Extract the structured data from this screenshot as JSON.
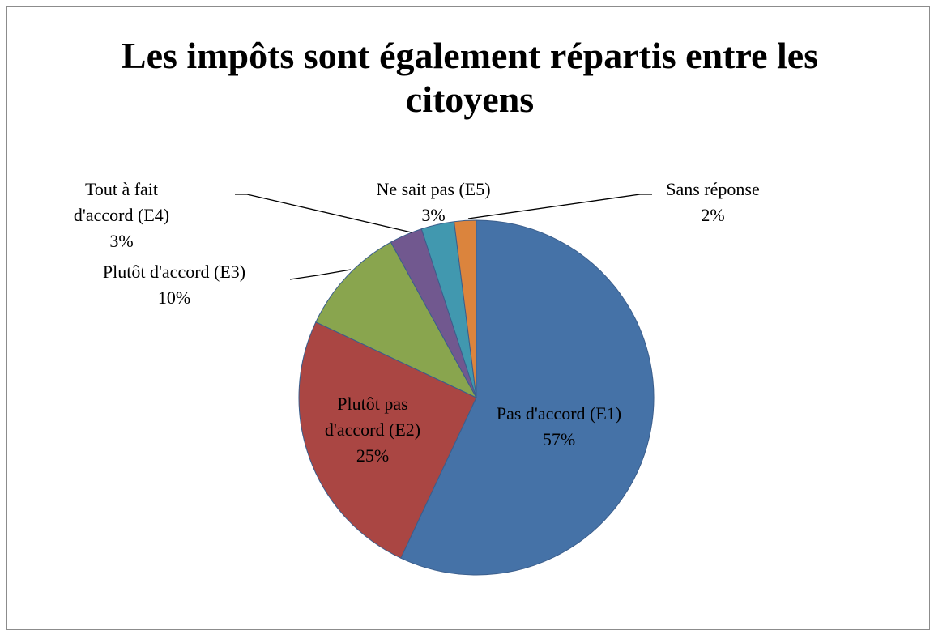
{
  "chart_data": {
    "type": "pie",
    "title": "Les impôts sont également répartis entre les citoyens",
    "categories": [
      "Pas d'accord (E1)",
      "Plutôt pas d'accord (E2)",
      "Plutôt d'accord (E3)",
      "Tout à fait d'accord (E4)",
      "Ne sait pas (E5)",
      "Sans réponse"
    ],
    "values": [
      57,
      25,
      10,
      3,
      3,
      2
    ],
    "value_labels": [
      "57%",
      "25%",
      "10%",
      "3%",
      "3%",
      "2%"
    ],
    "colors": [
      "#4572a7",
      "#aa4643",
      "#89a54e",
      "#71588f",
      "#4198af",
      "#db843d"
    ]
  }
}
